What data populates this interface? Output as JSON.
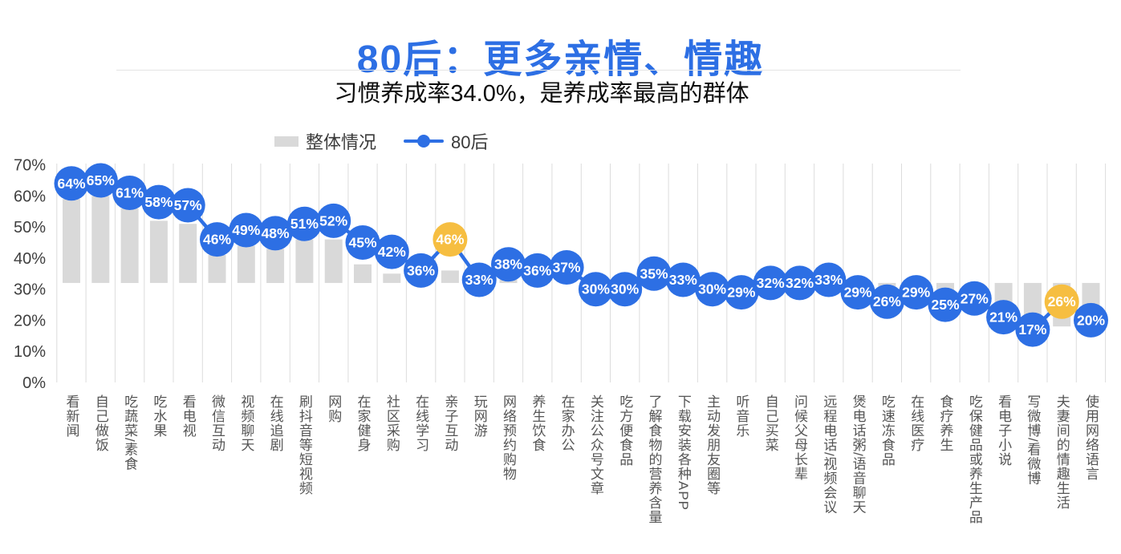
{
  "header": {
    "title": "80后：更多亲情、情趣",
    "subtitle": "习惯养成率34.0%，是养成率最高的群体"
  },
  "legend": [
    {
      "label": "整体情况",
      "marker": "gray-bar-swatch"
    },
    {
      "label": "80后",
      "marker": "blue-line-dot-swatch"
    }
  ],
  "colors": {
    "accent_blue": "#2d6fe4",
    "highlight_yellow": "#f6be41",
    "bar_gray": "#d9d9d9",
    "gridline": "#dcdcdc",
    "ytick_text": "#3f3f3f",
    "xlabel_text": "#555555",
    "point_label_text": "#ffffff"
  },
  "chart_data": {
    "type": "bar",
    "note": "combo chart: floating gray bars (overall rate, drawn between 32% baseline and value) + blue dot/line series (post-80s rate) with % data labels; two highlighted yellow dots",
    "categories": [
      "看新闻",
      "自己做饭",
      "吃蔬菜/素食",
      "吃水果",
      "看电视",
      "微信互动",
      "视频聊天",
      "在线追剧",
      "刷抖音等短视频",
      "网购",
      "在家健身",
      "社区采购",
      "在线学习",
      "亲子互动",
      "玩网游",
      "网络预约购物",
      "养生饮食",
      "在家办公",
      "关注公众号文章",
      "吃方便食品",
      "了解食物的营养含量",
      "下载安装各种APP",
      "主动发朋友圈等",
      "听音乐",
      "自己买菜",
      "问候父母长辈",
      "远程电话/视频会议",
      "煲电话粥/语音聊天",
      "吃速冻食品",
      "在线医疗",
      "食疗养生",
      "吃保健品或养生产品",
      "看电子小说",
      "写微博/看微博",
      "夫妻间的情趣生活",
      "使用网络语言"
    ],
    "series": [
      {
        "name": "整体情况",
        "type": "bar",
        "baseline_pct": 32,
        "values": [
          59,
          60,
          56,
          52,
          51,
          41,
          44,
          43,
          46,
          46,
          38,
          35,
          36,
          36,
          33,
          34,
          33,
          32,
          32,
          31,
          32,
          31,
          30,
          30,
          32,
          32,
          31,
          30,
          28,
          28,
          20,
          24,
          22,
          20,
          18,
          24
        ]
      },
      {
        "name": "80后",
        "type": "line-dot",
        "label_suffix": "%",
        "values": [
          64,
          65,
          61,
          58,
          57,
          46,
          49,
          48,
          51,
          52,
          45,
          42,
          36,
          46,
          33,
          38,
          36,
          37,
          30,
          30,
          35,
          33,
          30,
          29,
          32,
          32,
          33,
          29,
          26,
          29,
          25,
          27,
          21,
          17,
          26,
          20
        ],
        "highlight_indices": [
          13,
          34
        ]
      }
    ],
    "ylim": [
      0,
      70
    ],
    "ytick_values": [
      0,
      10,
      20,
      30,
      40,
      50,
      60,
      70
    ],
    "ytick_labels": [
      "0%",
      "10%",
      "20%",
      "30%",
      "40%",
      "50%",
      "60%",
      "70%"
    ],
    "grid": "vertical-only",
    "legend_position": "top-left-of-plot"
  }
}
